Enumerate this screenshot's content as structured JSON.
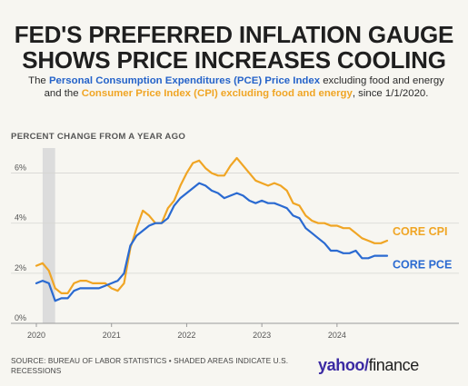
{
  "header": {
    "title_line1": "FED'S PREFERRED INFLATION GAUGE",
    "title_line2": "SHOWS PRICE INCREASES COOLING",
    "subtitle": {
      "part1": "The ",
      "pce_name": "Personal Consumption Expenditures (PCE) Price Index",
      "part2": " excluding food and energy and the ",
      "cpi_name": "Consumer Price Index (CPI) excluding food and energy",
      "part3": ", since 1/1/2020."
    }
  },
  "chart_data": {
    "type": "line",
    "title": "FED'S PREFERRED INFLATION GAUGE SHOWS PRICE INCREASES COOLING",
    "ylabel": "PERCENT CHANGE FROM A YEAR AGO",
    "xlabel": "",
    "x": [
      "2020-01",
      "2020-02",
      "2020-03",
      "2020-04",
      "2020-05",
      "2020-06",
      "2020-07",
      "2020-08",
      "2020-09",
      "2020-10",
      "2020-11",
      "2020-12",
      "2021-01",
      "2021-02",
      "2021-03",
      "2021-04",
      "2021-05",
      "2021-06",
      "2021-07",
      "2021-08",
      "2021-09",
      "2021-10",
      "2021-11",
      "2021-12",
      "2022-01",
      "2022-02",
      "2022-03",
      "2022-04",
      "2022-05",
      "2022-06",
      "2022-07",
      "2022-08",
      "2022-09",
      "2022-10",
      "2022-11",
      "2022-12",
      "2023-01",
      "2023-02",
      "2023-03",
      "2023-04",
      "2023-05",
      "2023-06",
      "2023-07",
      "2023-08",
      "2023-09",
      "2023-10",
      "2023-11",
      "2023-12",
      "2024-01",
      "2024-02",
      "2024-03",
      "2024-04",
      "2024-05",
      "2024-06",
      "2024-07",
      "2024-08",
      "2024-09"
    ],
    "series": [
      {
        "name": "CORE CPI",
        "color": "#f0a524",
        "values": [
          2.3,
          2.4,
          2.1,
          1.4,
          1.2,
          1.2,
          1.6,
          1.7,
          1.7,
          1.6,
          1.6,
          1.6,
          1.4,
          1.3,
          1.6,
          3.0,
          3.8,
          4.5,
          4.3,
          4.0,
          4.0,
          4.6,
          4.9,
          5.5,
          6.0,
          6.4,
          6.5,
          6.2,
          6.0,
          5.9,
          5.9,
          6.3,
          6.6,
          6.3,
          6.0,
          5.7,
          5.6,
          5.5,
          5.6,
          5.5,
          5.3,
          4.8,
          4.7,
          4.3,
          4.1,
          4.0,
          4.0,
          3.9,
          3.9,
          3.8,
          3.8,
          3.6,
          3.4,
          3.3,
          3.2,
          3.2,
          3.3
        ]
      },
      {
        "name": "CORE PCE",
        "color": "#2a6ad1",
        "values": [
          1.6,
          1.7,
          1.6,
          0.9,
          1.0,
          1.0,
          1.3,
          1.4,
          1.4,
          1.4,
          1.4,
          1.5,
          1.6,
          1.7,
          2.0,
          3.1,
          3.5,
          3.7,
          3.9,
          4.0,
          4.0,
          4.2,
          4.7,
          5.0,
          5.2,
          5.4,
          5.6,
          5.5,
          5.3,
          5.2,
          5.0,
          5.1,
          5.2,
          5.1,
          4.9,
          4.8,
          4.9,
          4.8,
          4.8,
          4.7,
          4.6,
          4.3,
          4.2,
          3.8,
          3.6,
          3.4,
          3.2,
          2.9,
          2.9,
          2.8,
          2.8,
          2.9,
          2.6,
          2.6,
          2.7,
          2.7,
          2.7
        ]
      }
    ],
    "ylim": [
      0,
      7
    ],
    "y_ticks": [
      "0%",
      "2%",
      "4%",
      "6%"
    ],
    "x_ticks": [
      "2020",
      "2021",
      "2022",
      "2023",
      "2024"
    ],
    "recession_shade": [
      "2020-02",
      "2020-04"
    ],
    "grid": true
  },
  "footer": {
    "source": "SOURCE: BUREAU OF LABOR STATISTICS • SHADED AREAS INDICATE U.S. RECESSIONS",
    "logo_yahoo": "yahoo/",
    "logo_finance": "finance"
  }
}
